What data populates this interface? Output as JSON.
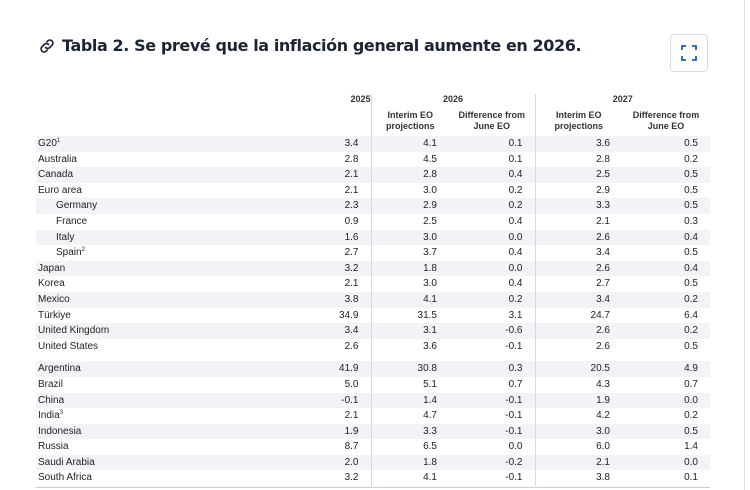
{
  "title": "Tabla 2. Se prevé que la inflación general aumente en 2026.",
  "icons": {
    "link": "link-icon",
    "expand": "expand-icon"
  },
  "accent_color": "#1a5fb4",
  "table": {
    "year_headers": [
      "2025",
      "2026",
      "2027"
    ],
    "sub_headers": {
      "interim": "Interim EO projections",
      "difference": "Difference from June EO"
    },
    "rows_group1": [
      {
        "name": "G20",
        "sup": "1",
        "v2025": "3.4",
        "i2026": "4.1",
        "d2026": "0.1",
        "i2027": "3.6",
        "d2027": "0.5"
      },
      {
        "name": "Australia",
        "sup": "",
        "v2025": "2.8",
        "i2026": "4.5",
        "d2026": "0.1",
        "i2027": "2.8",
        "d2027": "0.2"
      },
      {
        "name": "Canada",
        "sup": "",
        "v2025": "2.1",
        "i2026": "2.8",
        "d2026": "0.4",
        "i2027": "2.5",
        "d2027": "0.5"
      },
      {
        "name": "Euro area",
        "sup": "",
        "v2025": "2.1",
        "i2026": "3.0",
        "d2026": "0.2",
        "i2027": "2.9",
        "d2027": "0.5"
      },
      {
        "name": "Germany",
        "sup": "",
        "v2025": "2.3",
        "i2026": "2.9",
        "d2026": "0.2",
        "i2027": "3.3",
        "d2027": "0.5",
        "indent": true
      },
      {
        "name": "France",
        "sup": "",
        "v2025": "0.9",
        "i2026": "2.5",
        "d2026": "0.4",
        "i2027": "2.1",
        "d2027": "0.3",
        "indent": true
      },
      {
        "name": "Italy",
        "sup": "",
        "v2025": "1.6",
        "i2026": "3.0",
        "d2026": "0.0",
        "i2027": "2.6",
        "d2027": "0.4",
        "indent": true
      },
      {
        "name": "Spain",
        "sup": "2",
        "v2025": "2.7",
        "i2026": "3.7",
        "d2026": "0.4",
        "i2027": "3.4",
        "d2027": "0.5",
        "indent": true
      },
      {
        "name": "Japan",
        "sup": "",
        "v2025": "3.2",
        "i2026": "1.8",
        "d2026": "0.0",
        "i2027": "2.6",
        "d2027": "0.4"
      },
      {
        "name": "Korea",
        "sup": "",
        "v2025": "2.1",
        "i2026": "3.0",
        "d2026": "0.4",
        "i2027": "2.7",
        "d2027": "0.5"
      },
      {
        "name": "Mexico",
        "sup": "",
        "v2025": "3.8",
        "i2026": "4.1",
        "d2026": "0.2",
        "i2027": "3.4",
        "d2027": "0.2"
      },
      {
        "name": "Türkiye",
        "sup": "",
        "v2025": "34.9",
        "i2026": "31.5",
        "d2026": "3.1",
        "i2027": "24.7",
        "d2027": "6.4"
      },
      {
        "name": "United Kingdom",
        "sup": "",
        "v2025": "3.4",
        "i2026": "3.1",
        "d2026": "-0.6",
        "i2027": "2.6",
        "d2027": "0.2"
      },
      {
        "name": "United States",
        "sup": "",
        "v2025": "2.6",
        "i2026": "3.6",
        "d2026": "-0.1",
        "i2027": "2.6",
        "d2027": "0.5"
      }
    ],
    "rows_group2": [
      {
        "name": "Argentina",
        "sup": "",
        "v2025": "41.9",
        "i2026": "30.8",
        "d2026": "0.3",
        "i2027": "20.5",
        "d2027": "4.9"
      },
      {
        "name": "Brazil",
        "sup": "",
        "v2025": "5.0",
        "i2026": "5.1",
        "d2026": "0.7",
        "i2027": "4.3",
        "d2027": "0.7"
      },
      {
        "name": "China",
        "sup": "",
        "v2025": "-0.1",
        "i2026": "1.4",
        "d2026": "-0.1",
        "i2027": "1.9",
        "d2027": "0.0"
      },
      {
        "name": "India",
        "sup": "3",
        "v2025": "2.1",
        "i2026": "4.7",
        "d2026": "-0.1",
        "i2027": "4.2",
        "d2027": "0.2"
      },
      {
        "name": "Indonesia",
        "sup": "",
        "v2025": "1.9",
        "i2026": "3.3",
        "d2026": "-0.1",
        "i2027": "3.0",
        "d2027": "0.5"
      },
      {
        "name": "Russia",
        "sup": "",
        "v2025": "8.7",
        "i2026": "6.5",
        "d2026": "0.0",
        "i2027": "6.0",
        "d2027": "1.4"
      },
      {
        "name": "Saudi Arabia",
        "sup": "",
        "v2025": "2.0",
        "i2026": "1.8",
        "d2026": "-0.2",
        "i2027": "2.1",
        "d2027": "0.0"
      },
      {
        "name": "South Africa",
        "sup": "",
        "v2025": "3.2",
        "i2026": "4.1",
        "d2026": "-0.1",
        "i2027": "3.8",
        "d2027": "0.1"
      }
    ]
  }
}
